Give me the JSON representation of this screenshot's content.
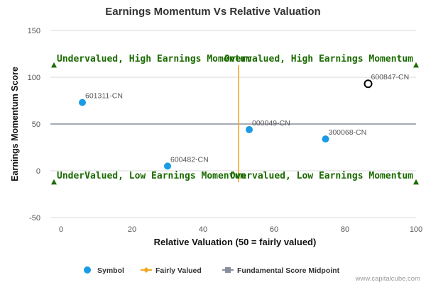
{
  "chart_data": {
    "type": "scatter",
    "title": "Earnings Momentum Vs Relative Valuation",
    "xlabel": "Relative Valuation (50 = fairly valued)",
    "ylabel": "Earnings Momentum Score",
    "xlim": [
      -3,
      100
    ],
    "ylim": [
      -50,
      150
    ],
    "x_ticks": [
      0,
      20,
      40,
      60,
      80,
      100
    ],
    "y_ticks": [
      -50,
      0,
      50,
      100,
      150
    ],
    "grid": "horizontal",
    "legend_position": "bottom",
    "points": [
      {
        "label": "601311-CN",
        "x": 6,
        "y": 73,
        "style": "filled"
      },
      {
        "label": "600482-CN",
        "x": 30,
        "y": 5,
        "style": "filled"
      },
      {
        "label": "000049-CN",
        "x": 53,
        "y": 44,
        "style": "filled"
      },
      {
        "label": "300068-CN",
        "x": 74.5,
        "y": 34,
        "style": "filled"
      },
      {
        "label": "600847-CN",
        "x": 86.5,
        "y": 93,
        "style": "hollow"
      }
    ],
    "fairly_valued_x": 50,
    "fairly_valued_line_y": [
      -12,
      113
    ],
    "midpoint_y": 50,
    "quadrants": [
      {
        "text": "Undervalued, High Earnings Momentum",
        "x": -2,
        "y": 113
      },
      {
        "text": "Overvalued, High Earnings Momentum",
        "x": 100,
        "y": 113
      },
      {
        "text": "UnderValued, Low Earnings Momentum",
        "x": -2,
        "y": -12
      },
      {
        "text": "Overvalued, Low Earnings Momentum",
        "x": 100,
        "y": -12
      }
    ],
    "legend": [
      "Symbol",
      "Fairly Valued",
      "Fundamental Score Midpoint"
    ],
    "colors": {
      "point": "#1a9be6",
      "hollow_stroke": "#000000",
      "fairly_valued": "#f5a623",
      "midpoint": "#8a8f9e",
      "quadrant_text": "#1a6b00",
      "marker": "#1a6b00",
      "grid": "#d8d8d8"
    }
  },
  "credit": "www.capitalcube.com"
}
